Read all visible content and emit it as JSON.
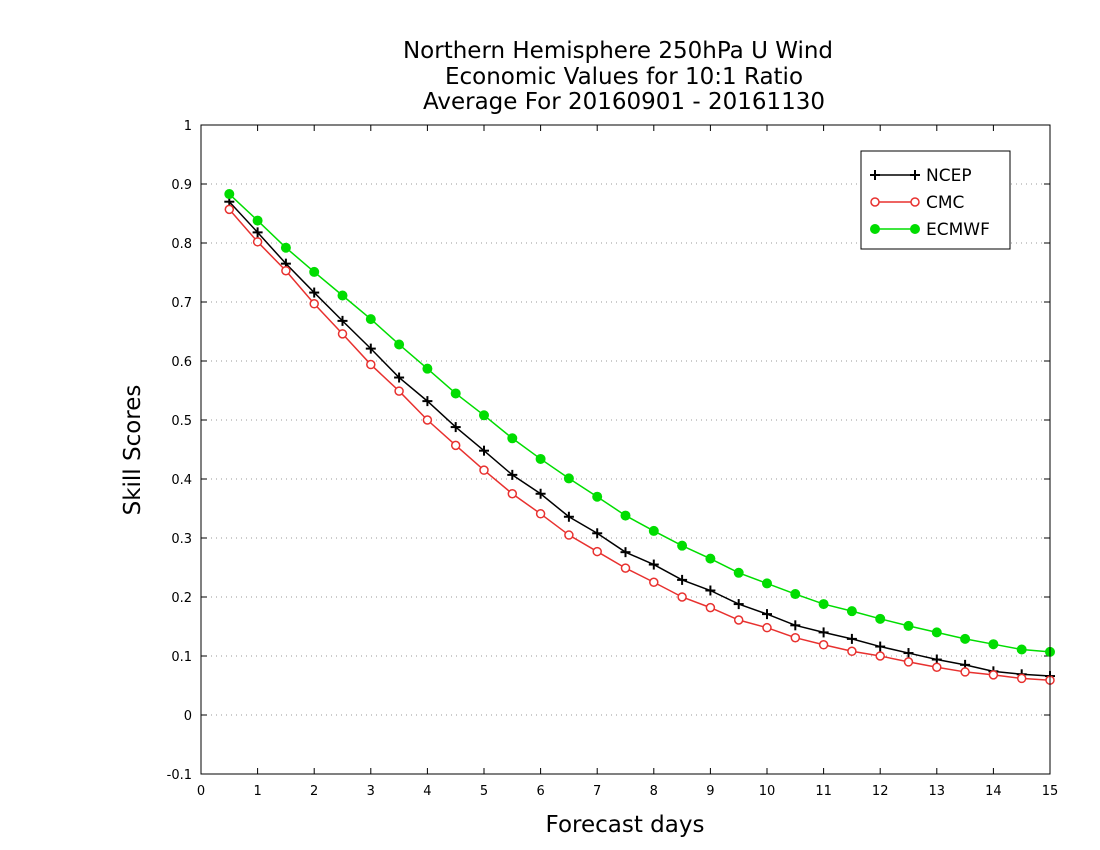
{
  "chart_data": {
    "type": "line",
    "title_lines": [
      "Northern Hemisphere 250hPa U Wind",
      "Economic Values for 10:1 Ratio",
      "Average For 20160901 - 20161130"
    ],
    "xlabel": "Forecast days",
    "ylabel": "Skill Scores",
    "xlim": [
      0,
      15
    ],
    "ylim": [
      -0.1,
      1
    ],
    "xticks": [
      0,
      1,
      2,
      3,
      4,
      5,
      6,
      7,
      8,
      9,
      10,
      11,
      12,
      13,
      14,
      15
    ],
    "yticks": [
      -0.1,
      0,
      0.1,
      0.2,
      0.3,
      0.4,
      0.5,
      0.6,
      0.7,
      0.8,
      0.9,
      1
    ],
    "ytick_labels": [
      "-0.1",
      "0",
      "0.1",
      "0.2",
      "0.3",
      "0.4",
      "0.5",
      "0.6",
      "0.7",
      "0.8",
      "0.9",
      "1"
    ],
    "grid": "horizontal dotted",
    "legend_position": "top-right",
    "x": [
      0.5,
      1,
      1.5,
      2,
      2.5,
      3,
      3.5,
      4,
      4.5,
      5,
      5.5,
      6,
      6.5,
      7,
      7.5,
      8,
      8.5,
      9,
      9.5,
      10,
      10.5,
      11,
      11.5,
      12,
      12.5,
      13,
      13.5,
      14,
      14.5,
      15
    ],
    "series": [
      {
        "name": "NCEP",
        "color": "#000000",
        "marker": "plus",
        "values": [
          0.87,
          0.818,
          0.765,
          0.716,
          0.668,
          0.621,
          0.572,
          0.532,
          0.488,
          0.448,
          0.407,
          0.375,
          0.336,
          0.308,
          0.276,
          0.255,
          0.229,
          0.211,
          0.188,
          0.171,
          0.152,
          0.14,
          0.129,
          0.116,
          0.105,
          0.094,
          0.085,
          0.074,
          0.069,
          0.066
        ]
      },
      {
        "name": "CMC",
        "color": "#e8312f",
        "marker": "open-circle",
        "values": [
          0.857,
          0.802,
          0.753,
          0.697,
          0.646,
          0.594,
          0.549,
          0.5,
          0.457,
          0.415,
          0.375,
          0.341,
          0.305,
          0.277,
          0.249,
          0.225,
          0.2,
          0.182,
          0.161,
          0.148,
          0.131,
          0.119,
          0.108,
          0.1,
          0.09,
          0.081,
          0.073,
          0.068,
          0.062,
          0.059
        ]
      },
      {
        "name": "ECMWF",
        "color": "#00dd00",
        "marker": "filled-circle",
        "values": [
          0.883,
          0.838,
          0.792,
          0.751,
          0.711,
          0.671,
          0.628,
          0.587,
          0.545,
          0.508,
          0.469,
          0.434,
          0.401,
          0.37,
          0.338,
          0.312,
          0.287,
          0.265,
          0.241,
          0.223,
          0.205,
          0.188,
          0.176,
          0.163,
          0.151,
          0.14,
          0.129,
          0.12,
          0.111,
          0.107
        ]
      }
    ]
  }
}
